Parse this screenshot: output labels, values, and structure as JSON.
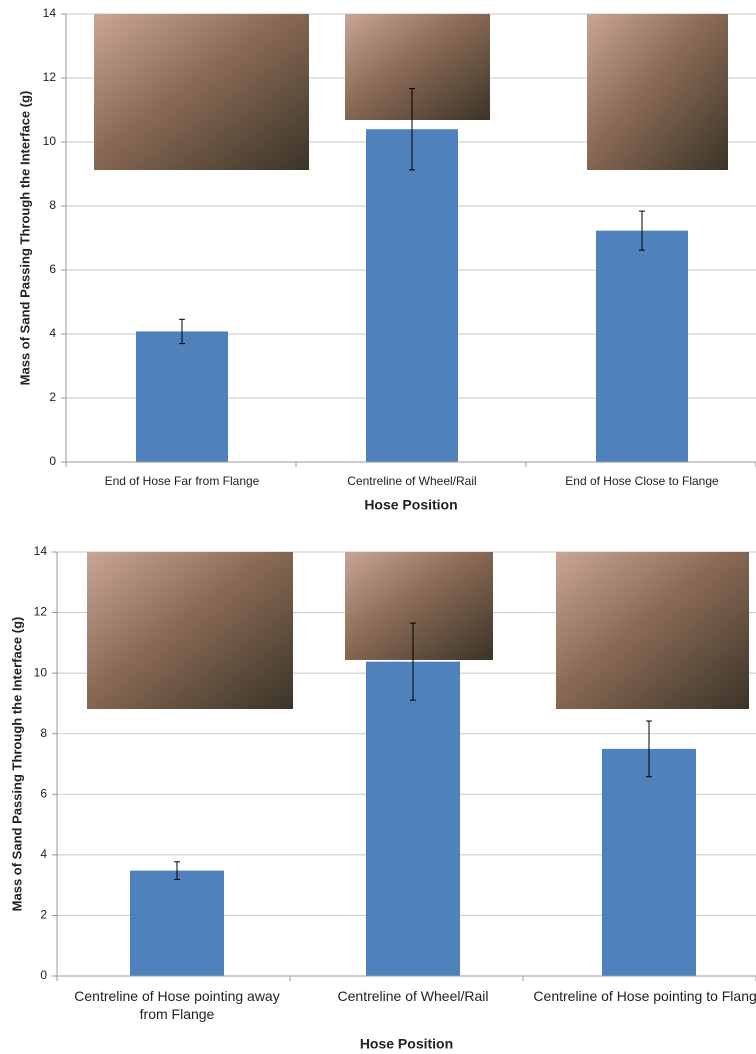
{
  "chart_data": [
    {
      "type": "bar",
      "xlabel": "Hose Position",
      "ylabel": "Mass of Sand Passing Through the Interface (g)",
      "categories": [
        "End of Hose Far from Flange",
        "Centreline of Wheel/Rail",
        "End of Hose Close to Flange"
      ],
      "values": [
        4.08,
        10.4,
        7.23
      ],
      "errors": [
        0.38,
        1.27,
        0.61
      ],
      "color": "#4f81bd",
      "ylim": [
        0,
        14
      ],
      "yticks": [
        0,
        2,
        4,
        6,
        8,
        10,
        12,
        14
      ],
      "grid": true
    },
    {
      "type": "bar",
      "xlabel": "Hose Position",
      "ylabel": "Mass of Sand Passing Through the Interface (g)",
      "categories": [
        "Centreline of  Hose pointing away from Flange",
        "Centreline of Wheel/Rail",
        "Centreline of  Hose pointing to Flange"
      ],
      "values": [
        3.48,
        10.38,
        7.5
      ],
      "errors": [
        0.29,
        1.27,
        0.92
      ],
      "color": "#4f81bd",
      "ylim": [
        0,
        14
      ],
      "yticks": [
        0,
        2,
        4,
        6,
        8,
        10,
        12,
        14
      ],
      "grid": true
    }
  ]
}
